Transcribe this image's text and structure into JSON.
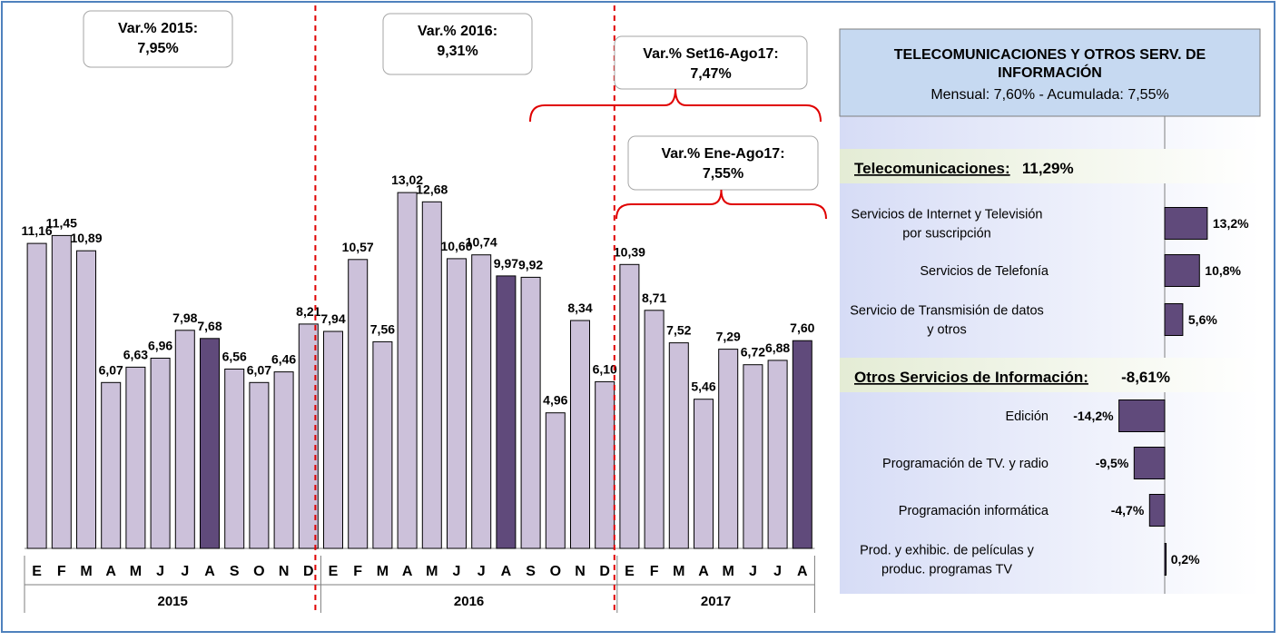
{
  "chart_data": [
    {
      "type": "bar",
      "title": "",
      "years": [
        "2015",
        "2016",
        "2017"
      ],
      "months": [
        "E",
        "F",
        "M",
        "A",
        "M",
        "J",
        "J",
        "A",
        "S",
        "O",
        "N",
        "D",
        "E",
        "F",
        "M",
        "A",
        "M",
        "J",
        "J",
        "A",
        "S",
        "O",
        "N",
        "D",
        "E",
        "F",
        "M",
        "A",
        "M",
        "J",
        "J",
        "A"
      ],
      "values": [
        11.16,
        11.45,
        10.89,
        6.07,
        6.63,
        6.96,
        7.98,
        7.68,
        6.56,
        6.07,
        6.46,
        8.21,
        7.94,
        10.57,
        7.56,
        13.02,
        12.68,
        10.6,
        10.74,
        9.97,
        9.92,
        4.96,
        8.34,
        6.1,
        10.39,
        8.71,
        7.52,
        5.46,
        7.29,
        6.72,
        6.88,
        7.6
      ],
      "value_labels": [
        "11,16",
        "11,45",
        "10,89",
        "6,07",
        "6,63",
        "6,96",
        "7,98",
        "7,68",
        "6,56",
        "6,07",
        "6,46",
        "8,21",
        "7,94",
        "10,57",
        "7,56",
        "13,02",
        "12,68",
        "10,60",
        "10,74",
        "9,97",
        "9,92",
        "4,96",
        "8,34",
        "6,10",
        "10,39",
        "8,71",
        "7,52",
        "5,46",
        "7,29",
        "6,72",
        "6,88",
        "7,60"
      ],
      "highlighted_indices": [
        7,
        19,
        31
      ],
      "ylim": [
        0,
        15.5
      ],
      "colors": {
        "normal": "#ccc1da",
        "highlight": "#604a7b",
        "separator": "#e00000",
        "bracket": "#e00000"
      },
      "annotations": [
        {
          "lines": [
            "Var.% 2015:",
            "7,95%"
          ]
        },
        {
          "lines": [
            "Var.% 2016:",
            "9,31%"
          ]
        },
        {
          "lines": [
            "Var.% Set16-Ago17:",
            "7,47%"
          ]
        },
        {
          "lines": [
            "Var.% Ene-Ago17:",
            "7,55%"
          ]
        }
      ]
    },
    {
      "type": "bar",
      "orientation": "horizontal",
      "header": {
        "title_line1": "TELECOMUNICACIONES Y OTROS SERV. DE",
        "title_line2": "INFORMACIÓN",
        "subtitle": "Mensual:  7,60%    -   Acumulada: 7,55%"
      },
      "sections": [
        {
          "label": "Telecomunicaciones:",
          "value": "11,29%",
          "items": [
            {
              "label_lines": [
                "Servicios de Internet y Televisión",
                "por suscripción"
              ],
              "value": 13.2,
              "value_label": "13,2%"
            },
            {
              "label_lines": [
                "Servicios de Telefonía"
              ],
              "value": 10.8,
              "value_label": "10,8%"
            },
            {
              "label_lines": [
                "Servicio de Transmisión de datos",
                "y otros"
              ],
              "value": 5.6,
              "value_label": "5,6%"
            }
          ]
        },
        {
          "label": "Otros Servicios de Información:",
          "value": "-8,61%",
          "items": [
            {
              "label_lines": [
                "Edición"
              ],
              "value": -14.2,
              "value_label": "-14,2%"
            },
            {
              "label_lines": [
                "Programación de TV.  y  radio"
              ],
              "value": -9.5,
              "value_label": "-9,5%"
            },
            {
              "label_lines": [
                "Programación informática"
              ],
              "value": -4.7,
              "value_label": "-4,7%"
            },
            {
              "label_lines": [
                "Prod.  y exhibic. de películas  y",
                "produc. programas TV"
              ],
              "value": 0.2,
              "value_label": "0,2%"
            }
          ]
        }
      ],
      "colors": {
        "bar": "#604a7b",
        "header_bg": "#c6d9f1",
        "section_bg": "#ebf1de",
        "panel_gradient": "#d9dff7"
      }
    }
  ]
}
